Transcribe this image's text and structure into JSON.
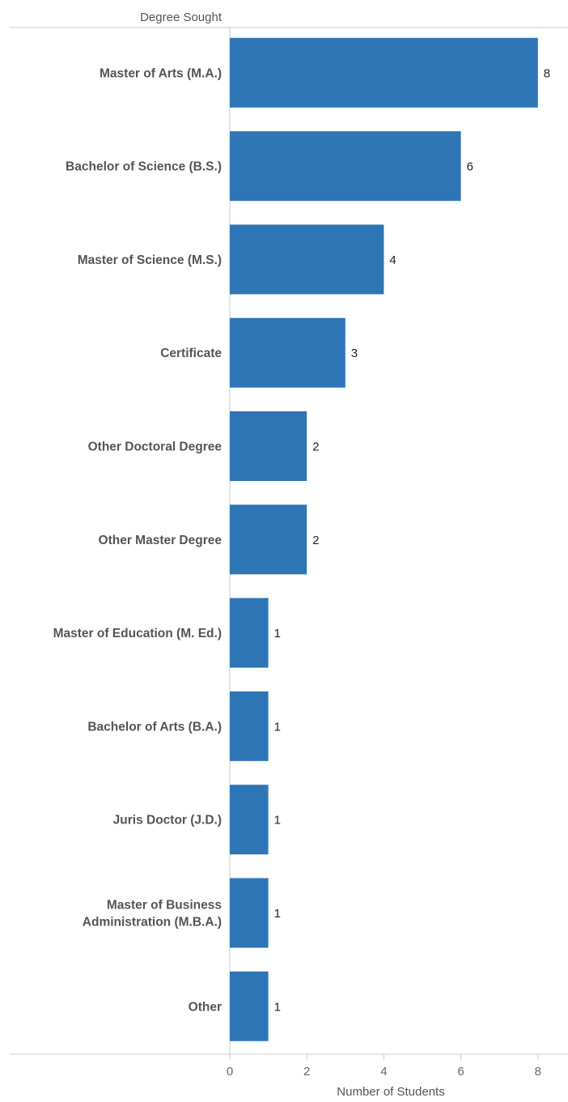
{
  "chart_data": {
    "type": "bar",
    "orientation": "horizontal",
    "row_header": "Degree Sought",
    "xlabel": "Number of Students",
    "categories": [
      "Master of Arts (M.A.)",
      "Bachelor of Science (B.S.)",
      "Master of Science (M.S.)",
      "Certificate",
      "Other Doctoral Degree",
      "Other Master Degree",
      "Master of Education (M. Ed.)",
      "Bachelor of Arts (B.A.)",
      "Juris Doctor (J.D.)",
      "Master of Business Administration (M.B.A.)",
      "Other"
    ],
    "category_label_lines": [
      [
        "Master of Arts (M.A.)"
      ],
      [
        "Bachelor of Science (B.S.)"
      ],
      [
        "Master of Science (M.S.)"
      ],
      [
        "Certificate"
      ],
      [
        "Other Doctoral Degree"
      ],
      [
        "Other Master Degree"
      ],
      [
        "Master of Education (M. Ed.)"
      ],
      [
        "Bachelor of Arts (B.A.)"
      ],
      [
        "Juris Doctor (J.D.)"
      ],
      [
        "Master of Business",
        "Administration (M.B.A.)"
      ],
      [
        "Other"
      ]
    ],
    "values": [
      8,
      6,
      4,
      3,
      2,
      2,
      1,
      1,
      1,
      1,
      1
    ],
    "data_labels": [
      "8",
      "6",
      "4",
      "3",
      "2",
      "2",
      "1",
      "1",
      "1",
      "1",
      "1"
    ],
    "x_ticks": [
      0,
      2,
      4,
      6,
      8
    ],
    "x_tick_labels": [
      "0",
      "2",
      "4",
      "6",
      "8"
    ],
    "xlim": [
      0,
      8.8
    ],
    "grid": false,
    "bar_color": "#2e75b5"
  }
}
